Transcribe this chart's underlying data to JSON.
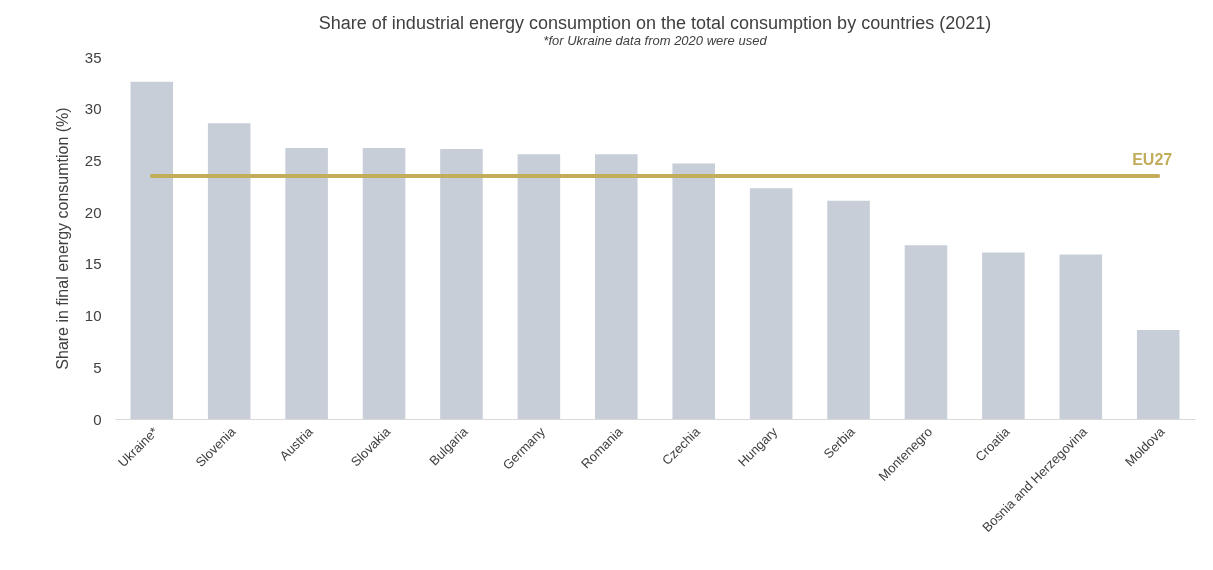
{
  "chart_data": {
    "type": "bar",
    "title": "Share of industrial energy consumption on the total consumption by countries (2021)",
    "subtitle": "*for Ukraine data from 2020 were used",
    "ylabel": "Share in final energy consumtion (%)",
    "categories": [
      "Ukraine*",
      "Slovenia",
      "Austria",
      "Slovakia",
      "Bulgaria",
      "Germany",
      "Romania",
      "Czechia",
      "Hungary",
      "Serbia",
      "Montenegro",
      "Croatia",
      "Bosnia and Herzegovina",
      "Moldova"
    ],
    "values": [
      32.6,
      28.6,
      26.2,
      26.2,
      26.1,
      25.6,
      25.6,
      24.7,
      22.3,
      21.1,
      16.8,
      16.1,
      15.9,
      8.6
    ],
    "color": "#c8ced8",
    "ylim": [
      0,
      35
    ],
    "yticks": [
      0,
      5,
      10,
      15,
      20,
      25,
      30,
      35
    ],
    "grid": false,
    "ref_lines": [
      {
        "axis": "y",
        "value": 23.5,
        "label": "EU27",
        "color": "#c2ad5a"
      }
    ]
  }
}
